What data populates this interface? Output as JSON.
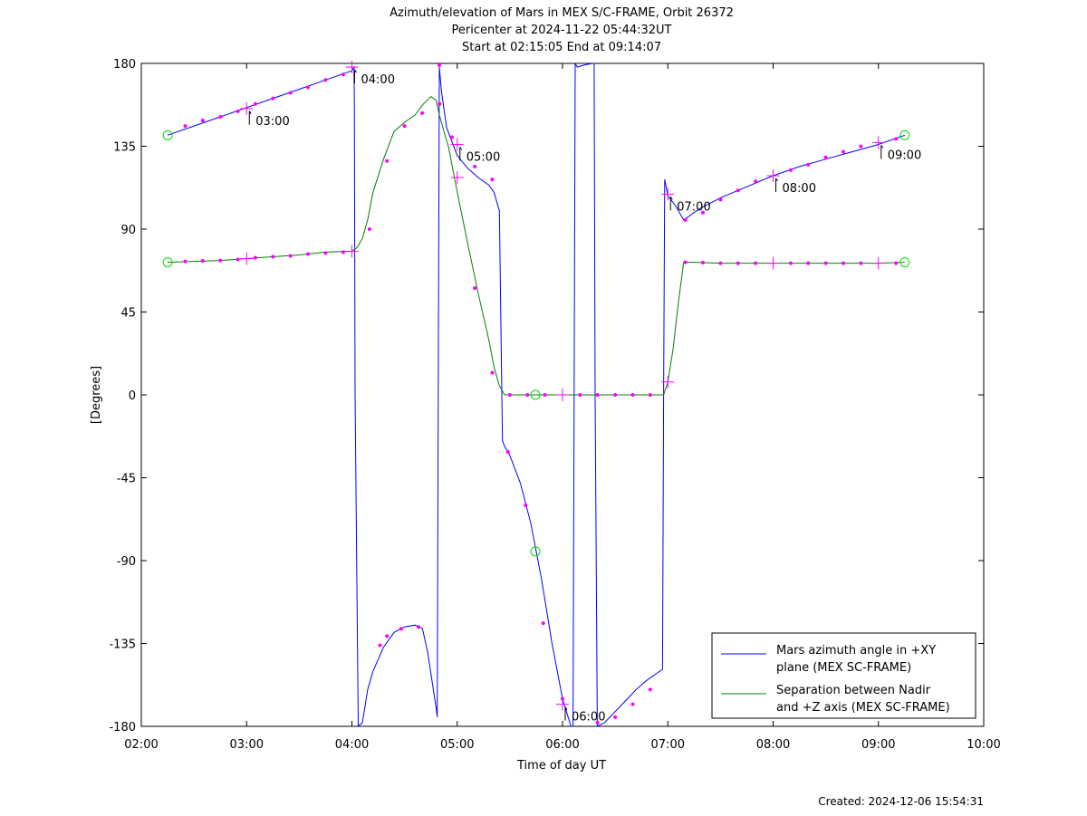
{
  "chart_data": {
    "type": "line",
    "title_lines": [
      "Azimuth/elevation of Mars in MEX S/C-FRAME,  Orbit 26372",
      "Pericenter at 2024-11-22 05:44:32UT",
      "Start at 02:15:05 End at 09:14:07"
    ],
    "xlabel": "Time of day UT",
    "ylabel": "[Degrees]",
    "footer": "Created: 2024-12-06 15:54:31",
    "xlim": [
      2.0,
      10.0
    ],
    "ylim": [
      -180,
      180
    ],
    "x_ticks": [
      {
        "value": 2,
        "label": "02:00"
      },
      {
        "value": 3,
        "label": "03:00"
      },
      {
        "value": 4,
        "label": "04:00"
      },
      {
        "value": 5,
        "label": "05:00"
      },
      {
        "value": 6,
        "label": "06:00"
      },
      {
        "value": 7,
        "label": "07:00"
      },
      {
        "value": 8,
        "label": "08:00"
      },
      {
        "value": 9,
        "label": "09:00"
      },
      {
        "value": 10,
        "label": "10:00"
      }
    ],
    "y_ticks": [
      {
        "value": 180,
        "label": "180"
      },
      {
        "value": 135,
        "label": "135"
      },
      {
        "value": 90,
        "label": "90"
      },
      {
        "value": 45,
        "label": "45"
      },
      {
        "value": 0,
        "label": "0"
      },
      {
        "value": -45,
        "label": "-45"
      },
      {
        "value": -90,
        "label": "-90"
      },
      {
        "value": -135,
        "label": "-135"
      },
      {
        "value": -180,
        "label": "-180"
      }
    ],
    "grid": false,
    "legend_position": "bottom-right",
    "series": [
      {
        "name": "Mars azimuth angle in +XY plane (MEX SC-FRAME)",
        "legend_lines": [
          "Mars azimuth angle in +XY",
          "plane (MEX SC-FRAME)"
        ],
        "color": "#0000ff",
        "x": [
          2.25,
          2.5,
          2.75,
          3.0,
          3.25,
          3.5,
          3.75,
          4.0,
          4.02,
          4.023,
          4.03,
          4.06,
          4.1,
          4.15,
          4.2,
          4.3,
          4.4,
          4.5,
          4.6,
          4.67,
          4.72,
          4.8,
          4.81,
          4.82,
          4.83,
          4.85,
          4.9,
          5.0,
          5.1,
          5.2,
          5.3,
          5.35,
          5.4,
          5.43,
          5.45,
          5.47,
          5.5,
          5.6,
          5.7,
          5.8,
          5.9,
          6.0,
          6.08,
          6.1,
          6.11,
          6.12,
          6.14,
          6.2,
          6.28,
          6.3,
          6.31,
          6.33,
          6.4,
          6.5,
          6.6,
          6.7,
          6.8,
          6.9,
          6.95,
          6.96,
          6.97,
          7.0,
          7.07,
          7.15,
          7.2,
          7.3,
          7.5,
          7.75,
          8.0,
          8.25,
          8.5,
          8.75,
          9.0,
          9.25
        ],
        "y": [
          141,
          146,
          151,
          156,
          161,
          166,
          171,
          176,
          178,
          160,
          0,
          -180,
          -178,
          -160,
          -150,
          -137,
          -129,
          -126,
          -125,
          -127,
          -140,
          -170,
          -175,
          0,
          178,
          165,
          145,
          130,
          123,
          118,
          114,
          110,
          100,
          -25,
          -28,
          -30,
          -33,
          -48,
          -70,
          -100,
          -135,
          -165,
          -180,
          -180,
          0,
          180,
          178,
          179,
          180,
          180,
          0,
          -180,
          -178,
          -172,
          -166,
          -160,
          -155,
          -151,
          -149,
          0,
          117,
          108,
          103,
          95,
          97,
          101,
          107,
          113,
          119,
          124,
          128,
          132,
          136,
          141
        ]
      },
      {
        "name": "Separation between Nadir and +Z axis (MEX SC-FRAME)",
        "legend_lines": [
          "Separation between Nadir",
          "and +Z axis (MEX SC-FRAME)"
        ],
        "color": "#008000",
        "x": [
          2.25,
          2.5,
          2.75,
          3.0,
          3.25,
          3.5,
          3.75,
          4.0,
          4.05,
          4.1,
          4.15,
          4.2,
          4.3,
          4.4,
          4.5,
          4.6,
          4.68,
          4.75,
          4.8,
          4.83,
          4.87,
          4.92,
          5.0,
          5.1,
          5.2,
          5.3,
          5.35,
          5.4,
          5.45,
          5.5,
          5.75,
          6.0,
          6.25,
          6.5,
          6.75,
          6.96,
          7.0,
          7.05,
          7.1,
          7.15,
          7.25,
          7.5,
          7.75,
          8.0,
          8.25,
          8.5,
          8.75,
          9.0,
          9.25
        ],
        "y": [
          72,
          72.5,
          73,
          74,
          75,
          76,
          77.5,
          78,
          80,
          85,
          95,
          110,
          128,
          143,
          148,
          152,
          158,
          162,
          160,
          152,
          144,
          134,
          110,
          82,
          55,
          30,
          15,
          5,
          0,
          0,
          0,
          0,
          0,
          0,
          0,
          0,
          7,
          25,
          50,
          72,
          72,
          71.5,
          71.5,
          71.5,
          71.5,
          71.5,
          71.5,
          71.5,
          72
        ]
      }
    ],
    "markers": [
      {
        "series": 0,
        "x": [
          2.417,
          2.583,
          2.75,
          2.917,
          3.083,
          3.25,
          3.417,
          3.583,
          3.75,
          3.917,
          4.267,
          4.333,
          4.467,
          4.633,
          4.83,
          4.95,
          5.167,
          5.333,
          5.483,
          5.65,
          5.817,
          6.0,
          6.333,
          6.5,
          6.667,
          6.833,
          7.167,
          7.333,
          7.5,
          7.667,
          7.833,
          8.167,
          8.333,
          8.5,
          8.667,
          8.833,
          9.167
        ],
        "y": [
          146,
          149,
          151,
          154,
          158,
          161,
          164,
          167,
          171,
          174,
          -136,
          -131,
          -127,
          -126,
          179,
          140,
          124,
          117,
          -31,
          -60,
          -124,
          -165,
          -178,
          -175,
          -168,
          -160,
          95,
          99,
          106,
          111,
          116,
          122,
          125,
          129,
          132,
          135,
          139
        ]
      },
      {
        "series": 1,
        "x": [
          2.417,
          2.583,
          2.75,
          2.917,
          3.083,
          3.25,
          3.417,
          3.583,
          3.75,
          3.917,
          4.167,
          4.333,
          4.5,
          4.667,
          4.833,
          5.167,
          5.333,
          5.5,
          5.667,
          5.833,
          6.167,
          6.333,
          6.5,
          6.667,
          6.833,
          7.167,
          7.333,
          7.5,
          7.667,
          7.833,
          8.167,
          8.333,
          8.5,
          8.667,
          8.833,
          9.167
        ],
        "y": [
          72.5,
          72.8,
          73,
          73.5,
          74.5,
          75,
          75.5,
          76.5,
          77,
          77.5,
          90,
          127,
          146,
          153,
          158,
          58,
          12,
          0,
          0,
          0,
          0,
          0,
          0,
          0,
          0,
          72,
          71.8,
          71.5,
          71.5,
          71.5,
          71.5,
          71.5,
          71.5,
          71.5,
          71.5,
          71.5
        ]
      }
    ],
    "hour_marks": [
      {
        "label": "03:00",
        "x": 3.0,
        "y_az": 155.5,
        "y_sep": 74
      },
      {
        "label": "04:00",
        "x": 4.0,
        "y_az": 178,
        "y_sep": 78
      },
      {
        "label": "05:00",
        "x": 5.0,
        "y_az": 136,
        "y_sep": 118
      },
      {
        "label": "06:00",
        "x": 6.0,
        "y_az": -168,
        "y_sep": 0
      },
      {
        "label": "07:00",
        "x": 7.0,
        "y_az": 109,
        "y_sep": 7
      },
      {
        "label": "08:00",
        "x": 8.0,
        "y_az": 119,
        "y_sep": 71.5
      },
      {
        "label": "09:00",
        "x": 9.0,
        "y_az": 137,
        "y_sep": 71.5
      }
    ],
    "circle_markers": [
      {
        "x": 2.25,
        "y": 141
      },
      {
        "x": 2.25,
        "y": 72
      },
      {
        "x": 9.25,
        "y": 141
      },
      {
        "x": 9.25,
        "y": 72
      },
      {
        "x": 5.742,
        "y": 0
      },
      {
        "x": 5.742,
        "y": -85
      }
    ]
  }
}
